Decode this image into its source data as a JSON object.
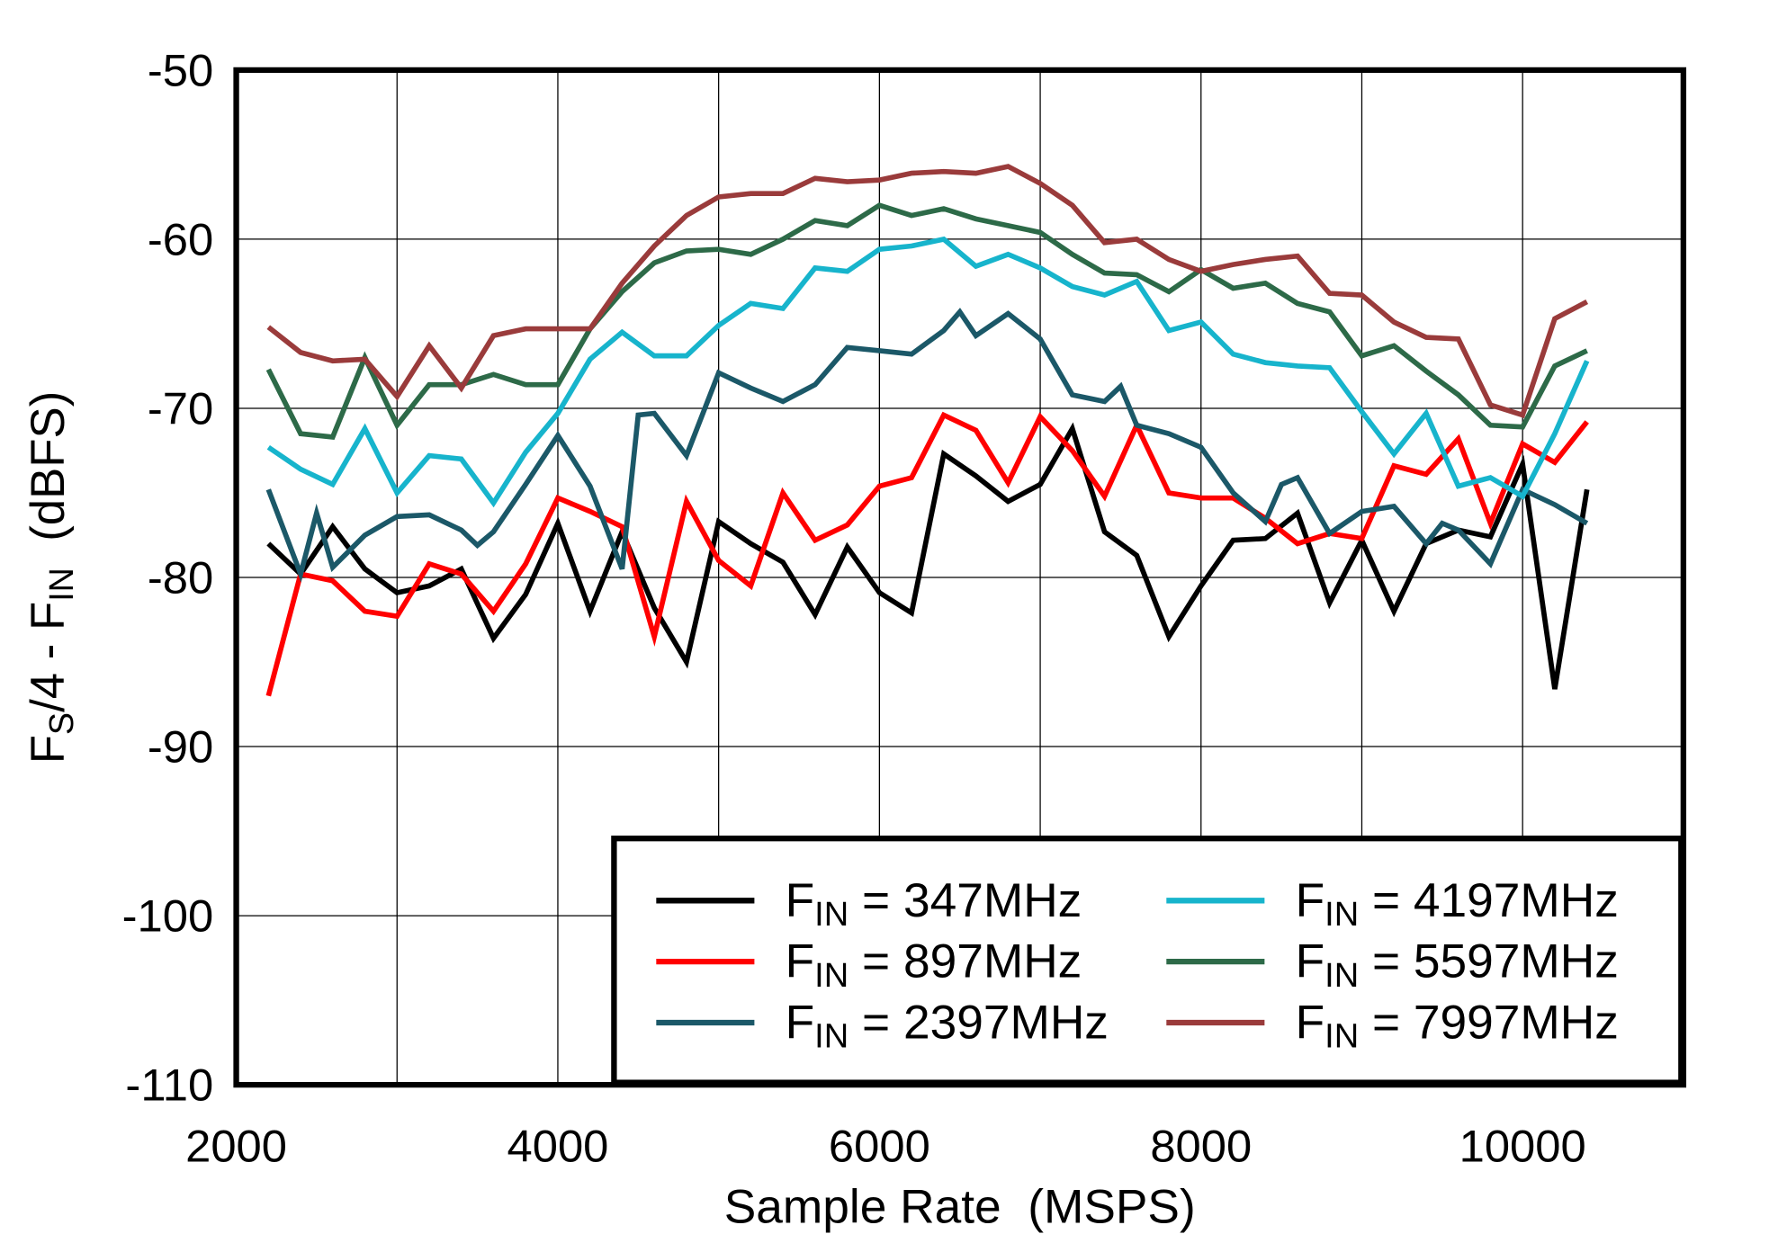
{
  "chart_data": {
    "type": "line",
    "xlabel": "Sample Rate  (MSPS)",
    "ylabel": {
      "main1": "F",
      "sub1": "S",
      "main2": "/4 - F",
      "sub2": "IN",
      "rest": "  (dBFS)"
    },
    "xlim": [
      2000,
      11000
    ],
    "ylim": [
      -110,
      -50
    ],
    "xticks": [
      2000,
      4000,
      6000,
      8000,
      10000
    ],
    "yticks": [
      -50,
      -60,
      -70,
      -80,
      -90,
      -100,
      -110
    ],
    "grid": true,
    "legend_placement": "bottom-right",
    "series": [
      {
        "name": "FIN = 347MHz",
        "label": {
          "main": "F",
          "sub": "IN",
          "rest": " = 347MHz"
        },
        "color": "#000000",
        "x": [
          2200,
          2400,
          2600,
          2800,
          3000,
          3200,
          3400,
          3600,
          3800,
          4000,
          4200,
          4400,
          4600,
          4800,
          5000,
          5200,
          5400,
          5600,
          5800,
          6000,
          6200,
          6400,
          6600,
          6800,
          7000,
          7200,
          7400,
          7600,
          7800,
          8000,
          8200,
          8400,
          8600,
          8800,
          9000,
          9200,
          9400,
          9600,
          9800,
          10000,
          10200,
          10400
        ],
        "y": [
          -78,
          -79.8,
          -77,
          -79.5,
          -80.9,
          -80.5,
          -79.5,
          -83.6,
          -81,
          -76.8,
          -82,
          -77.3,
          -81.8,
          -85,
          -76.7,
          -78,
          -79.1,
          -82.2,
          -78.2,
          -80.9,
          -82.1,
          -72.7,
          -74,
          -75.5,
          -74.5,
          -71.2,
          -77.3,
          -78.7,
          -83.5,
          -80.5,
          -77.8,
          -77.7,
          -76.2,
          -81.5,
          -77.8,
          -82,
          -78,
          -77.2,
          -77.6,
          -73.3,
          -86.6,
          -74.8
        ]
      },
      {
        "name": "FIN = 897MHz",
        "label": {
          "main": "F",
          "sub": "IN",
          "rest": " = 897MHz"
        },
        "color": "#ff0000",
        "x": [
          2200,
          2400,
          2600,
          2800,
          3000,
          3200,
          3400,
          3600,
          3800,
          4000,
          4200,
          4400,
          4600,
          4800,
          5000,
          5200,
          5400,
          5600,
          5800,
          6000,
          6200,
          6400,
          6600,
          6800,
          7000,
          7200,
          7400,
          7600,
          7800,
          8000,
          8200,
          8400,
          8600,
          8800,
          9000,
          9200,
          9400,
          9600,
          9800,
          10000,
          10200,
          10400
        ],
        "y": [
          -87,
          -79.8,
          -80.2,
          -82,
          -82.3,
          -79.2,
          -79.8,
          -82,
          -79.2,
          -75.3,
          -76.1,
          -77,
          -83.5,
          -75.5,
          -79,
          -80.5,
          -75,
          -77.8,
          -76.9,
          -74.6,
          -74.1,
          -70.4,
          -71.3,
          -74.4,
          -70.5,
          -72.5,
          -75.2,
          -71,
          -75,
          -75.3,
          -75.3,
          -76.5,
          -78,
          -77.4,
          -77.7,
          -73.4,
          -73.9,
          -71.8,
          -76.8,
          -72.1,
          -73.2,
          -70.8
        ]
      },
      {
        "name": "FIN = 2397MHz",
        "label": {
          "main": "F",
          "sub": "IN",
          "rest": " = 2397MHz"
        },
        "color": "#1b5868",
        "x": [
          2200,
          2400,
          2500,
          2600,
          2800,
          3000,
          3200,
          3400,
          3500,
          3600,
          3800,
          4000,
          4200,
          4400,
          4500,
          4600,
          4800,
          5000,
          5200,
          5400,
          5600,
          5800,
          6000,
          6200,
          6400,
          6500,
          6600,
          6800,
          7000,
          7200,
          7400,
          7500,
          7600,
          7800,
          8000,
          8200,
          8400,
          8500,
          8600,
          8800,
          9000,
          9200,
          9400,
          9500,
          9600,
          9800,
          10000,
          10200,
          10400
        ],
        "y": [
          -74.8,
          -79.8,
          -76.2,
          -79.4,
          -77.5,
          -76.4,
          -76.3,
          -77.2,
          -78.1,
          -77.3,
          -74.5,
          -71.6,
          -74.6,
          -79.5,
          -70.4,
          -70.3,
          -72.8,
          -67.9,
          -68.8,
          -69.6,
          -68.6,
          -66.4,
          -66.6,
          -66.8,
          -65.4,
          -64.3,
          -65.7,
          -64.4,
          -65.9,
          -69.2,
          -69.6,
          -68.7,
          -71,
          -71.5,
          -72.3,
          -75,
          -76.7,
          -74.5,
          -74.1,
          -77.4,
          -76.1,
          -75.8,
          -78,
          -76.8,
          -77.2,
          -79.2,
          -74.8,
          -75.7,
          -76.8
        ]
      },
      {
        "name": "FIN = 4197MHz",
        "label": {
          "main": "F",
          "sub": "IN",
          "rest": " = 4197MHz"
        },
        "color": "#17b4cc",
        "x": [
          2200,
          2400,
          2600,
          2800,
          3000,
          3200,
          3400,
          3600,
          3800,
          4000,
          4200,
          4400,
          4600,
          4800,
          5000,
          5200,
          5400,
          5600,
          5800,
          6000,
          6200,
          6400,
          6600,
          6800,
          7000,
          7200,
          7400,
          7600,
          7800,
          8000,
          8200,
          8400,
          8600,
          8800,
          9000,
          9200,
          9400,
          9600,
          9800,
          10000,
          10200,
          10400
        ],
        "y": [
          -72.3,
          -73.6,
          -74.5,
          -71.2,
          -75,
          -72.8,
          -73,
          -75.6,
          -72.6,
          -70.3,
          -67.1,
          -65.5,
          -66.9,
          -66.9,
          -65.1,
          -63.8,
          -64.1,
          -61.7,
          -61.9,
          -60.6,
          -60.4,
          -60,
          -61.6,
          -60.9,
          -61.7,
          -62.8,
          -63.3,
          -62.5,
          -65.4,
          -64.9,
          -66.8,
          -67.3,
          -67.5,
          -67.6,
          -70.2,
          -72.7,
          -70.3,
          -74.6,
          -74.1,
          -75.2,
          -71.5,
          -67.2
        ]
      },
      {
        "name": "FIN = 5597MHz",
        "label": {
          "main": "F",
          "sub": "IN",
          "rest": " = 5597MHz"
        },
        "color": "#2d6a48",
        "x": [
          2200,
          2400,
          2600,
          2800,
          3000,
          3200,
          3400,
          3600,
          3800,
          4000,
          4200,
          4400,
          4600,
          4800,
          5000,
          5200,
          5400,
          5600,
          5800,
          6000,
          6200,
          6400,
          6600,
          6800,
          7000,
          7200,
          7400,
          7600,
          7800,
          8000,
          8200,
          8400,
          8600,
          8800,
          9000,
          9200,
          9400,
          9600,
          9800,
          10000,
          10200,
          10400
        ],
        "y": [
          -67.7,
          -71.5,
          -71.7,
          -67,
          -71,
          -68.6,
          -68.6,
          -68,
          -68.6,
          -68.6,
          -65.3,
          -63.1,
          -61.4,
          -60.7,
          -60.6,
          -60.9,
          -60,
          -58.9,
          -59.2,
          -58,
          -58.6,
          -58.2,
          -58.8,
          -59.2,
          -59.6,
          -60.9,
          -62,
          -62.1,
          -63.1,
          -61.8,
          -62.9,
          -62.6,
          -63.8,
          -64.3,
          -66.9,
          -66.3,
          -67.8,
          -69.2,
          -71,
          -71.1,
          -67.5,
          -66.6
        ]
      },
      {
        "name": "FIN = 7997MHz",
        "label": {
          "main": "F",
          "sub": "IN",
          "rest": " = 7997MHz"
        },
        "color": "#9a3b3b",
        "x": [
          2200,
          2400,
          2600,
          2800,
          3000,
          3200,
          3400,
          3600,
          3800,
          4000,
          4200,
          4400,
          4600,
          4800,
          5000,
          5200,
          5400,
          5600,
          5800,
          6000,
          6200,
          6400,
          6600,
          6800,
          7000,
          7200,
          7400,
          7600,
          7800,
          8000,
          8200,
          8400,
          8600,
          8800,
          9000,
          9200,
          9400,
          9600,
          9800,
          10000,
          10200,
          10400
        ],
        "y": [
          -65.2,
          -66.7,
          -67.2,
          -67.1,
          -69.3,
          -66.3,
          -68.8,
          -65.7,
          -65.3,
          -65.3,
          -65.3,
          -62.6,
          -60.4,
          -58.6,
          -57.5,
          -57.3,
          -57.3,
          -56.4,
          -56.6,
          -56.5,
          -56.1,
          -56,
          -56.1,
          -55.7,
          -56.7,
          -58,
          -60.2,
          -60,
          -61.2,
          -61.9,
          -61.5,
          -61.2,
          -61,
          -63.2,
          -63.3,
          -64.9,
          -65.8,
          -65.9,
          -69.8,
          -70.4,
          -64.7,
          -63.7
        ]
      }
    ]
  }
}
